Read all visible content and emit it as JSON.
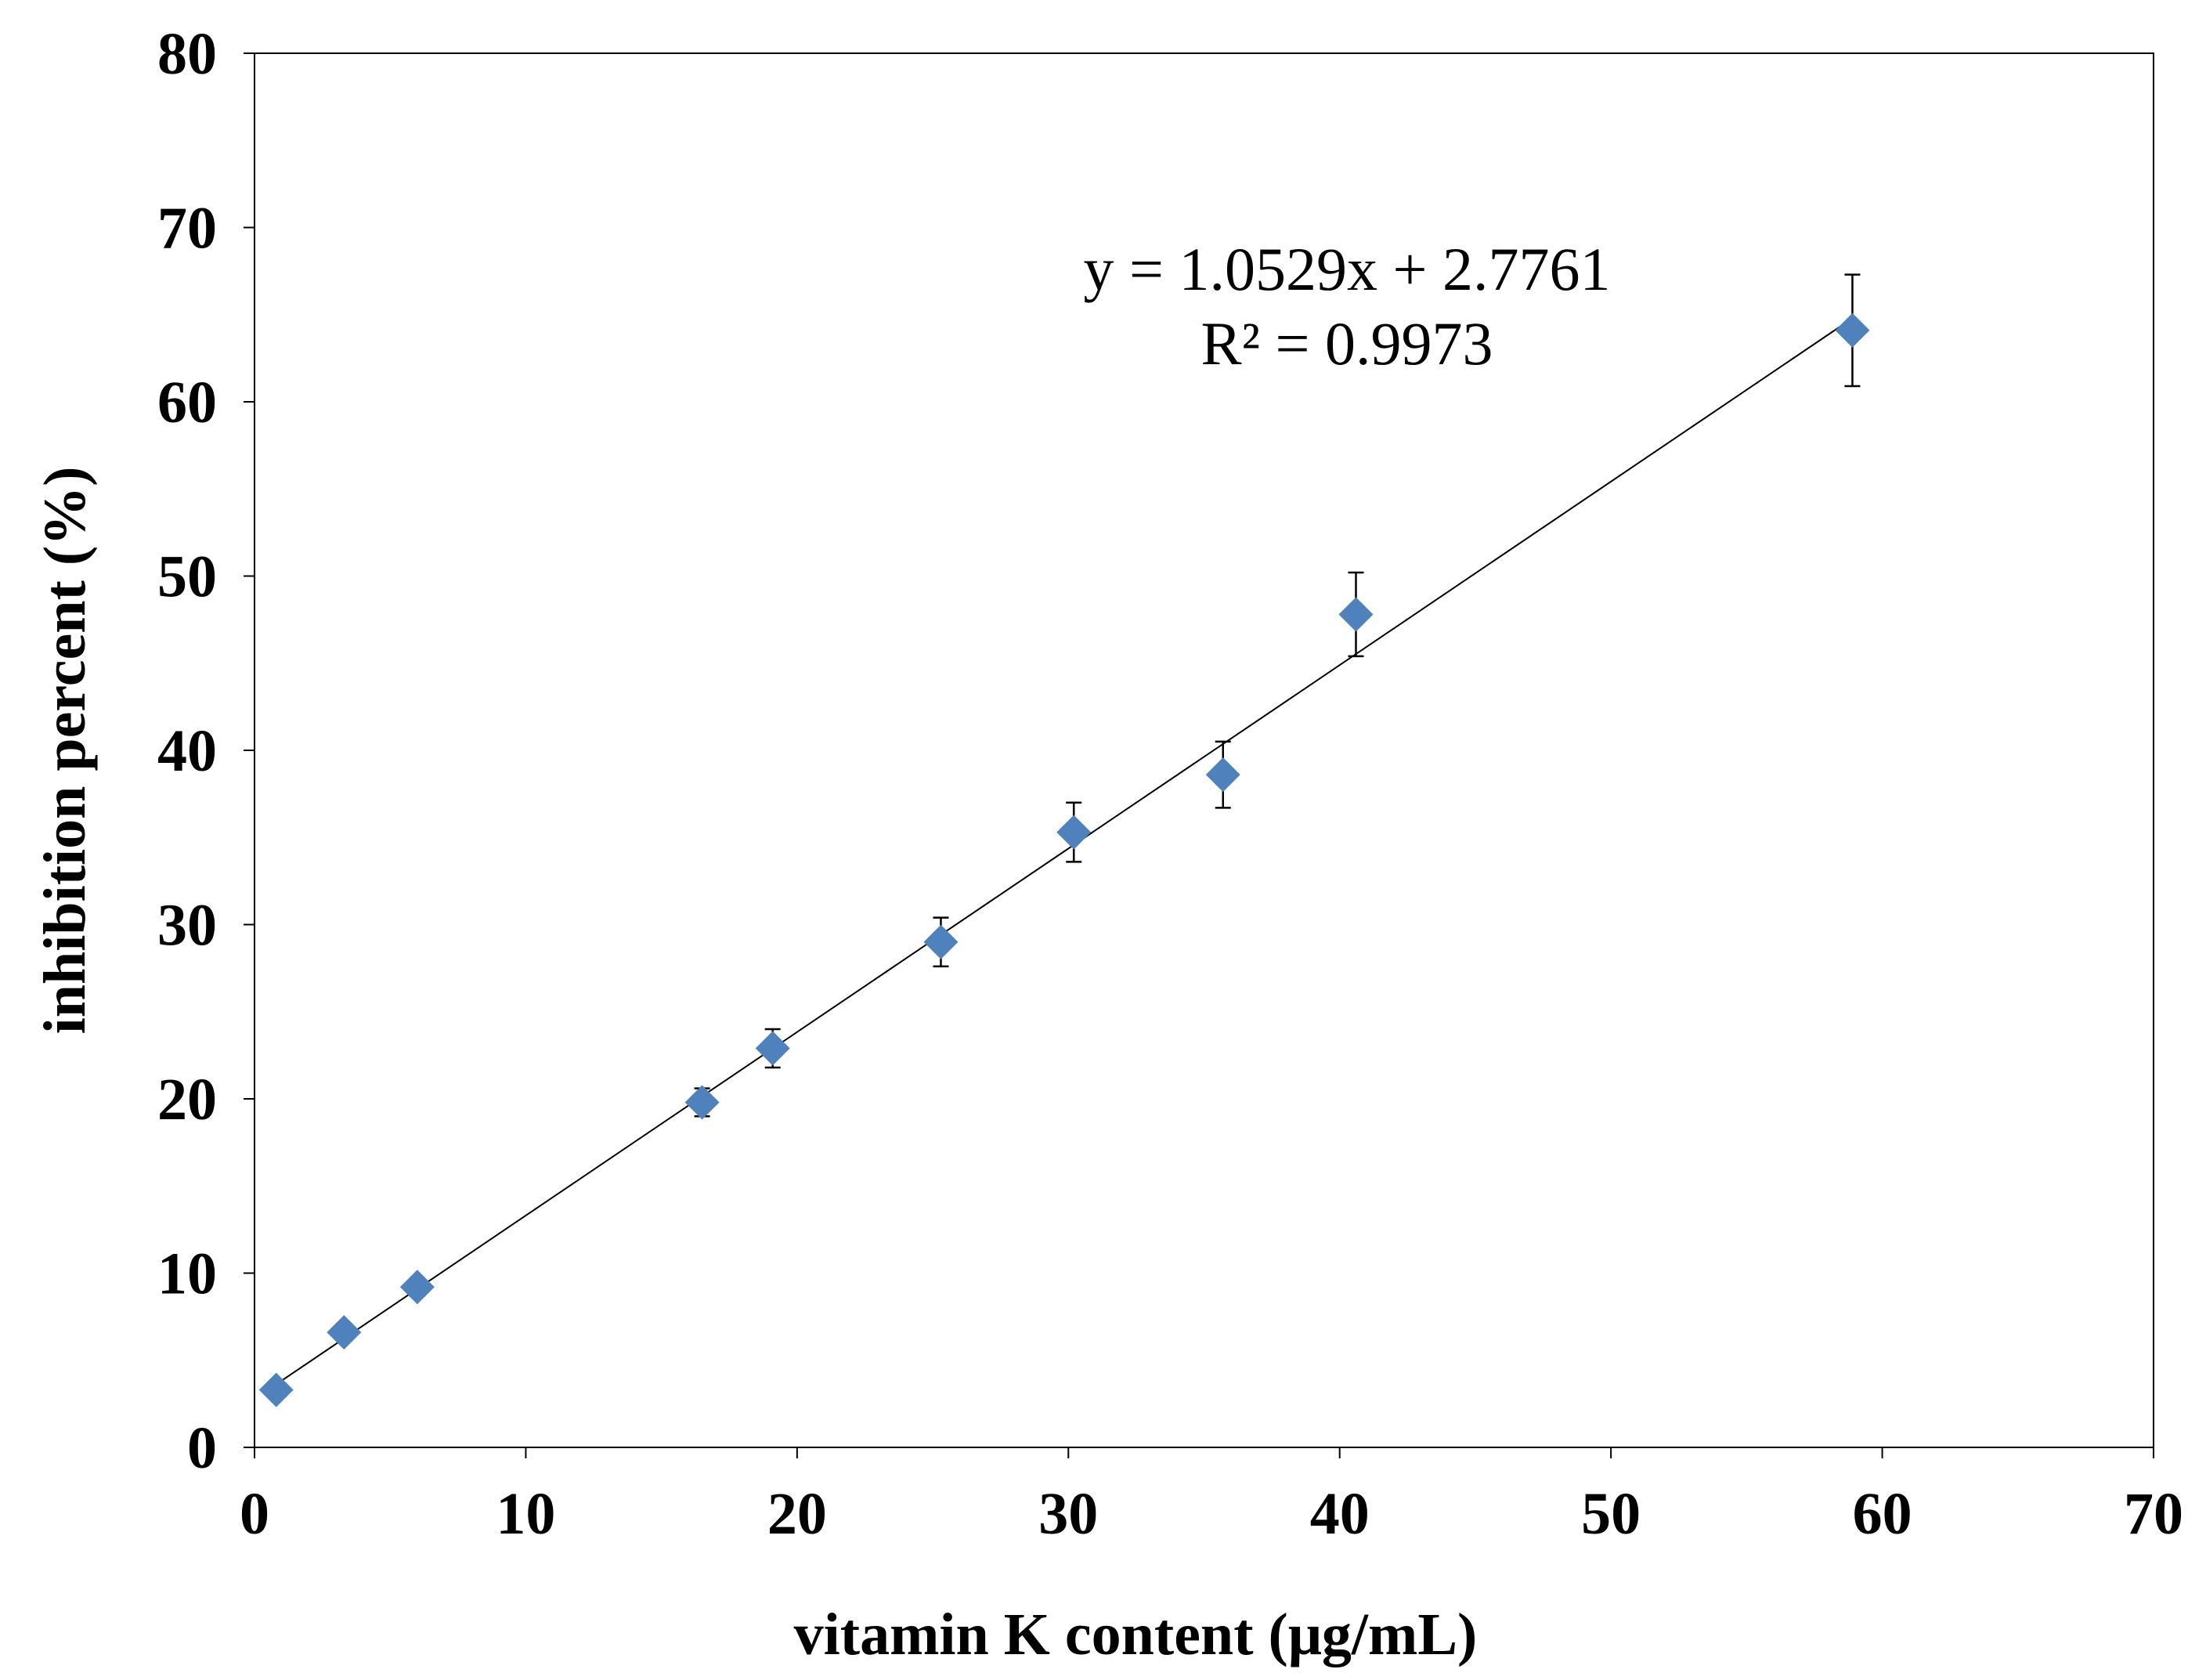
{
  "chart_data": {
    "type": "scatter",
    "title": "",
    "xlabel": "vitamin K content  (μg/mL)",
    "ylabel": "inhibition percent  (%)",
    "xlim": [
      0,
      70
    ],
    "ylim": [
      0,
      80
    ],
    "xticks": [
      0,
      10,
      20,
      30,
      40,
      50,
      60,
      70
    ],
    "yticks": [
      0,
      10,
      20,
      30,
      40,
      50,
      60,
      70,
      80
    ],
    "xtick_labels": [
      "0",
      "10",
      "20",
      "30",
      "40",
      "50",
      "60",
      "70"
    ],
    "ytick_labels": [
      "0",
      "10",
      "20",
      "30",
      "40",
      "50",
      "60",
      "70",
      "80"
    ],
    "grid": false,
    "legend": "none",
    "marker_color": "#4F81BD",
    "series": [
      {
        "name": "data",
        "points": [
          {
            "x": 0.8,
            "y": 3.3,
            "err": 0.4
          },
          {
            "x": 3.3,
            "y": 6.6,
            "err": 0.5
          },
          {
            "x": 6.0,
            "y": 9.2,
            "err": 0.5
          },
          {
            "x": 16.5,
            "y": 19.8,
            "err": 0.8
          },
          {
            "x": 19.1,
            "y": 22.9,
            "err": 1.1
          },
          {
            "x": 25.3,
            "y": 29.0,
            "err": 1.4
          },
          {
            "x": 30.2,
            "y": 35.3,
            "err": 1.7
          },
          {
            "x": 35.7,
            "y": 38.6,
            "err": 1.9
          },
          {
            "x": 40.6,
            "y": 47.8,
            "err": 2.4
          },
          {
            "x": 58.9,
            "y": 64.1,
            "err": 3.2
          }
        ]
      }
    ],
    "trendline": {
      "slope": 1.0529,
      "intercept": 2.7761,
      "x_range": [
        0.8,
        58.9
      ],
      "equation_label": "y = 1.0529x + 2.7761",
      "r2_label": "R² = 0.9973"
    }
  }
}
